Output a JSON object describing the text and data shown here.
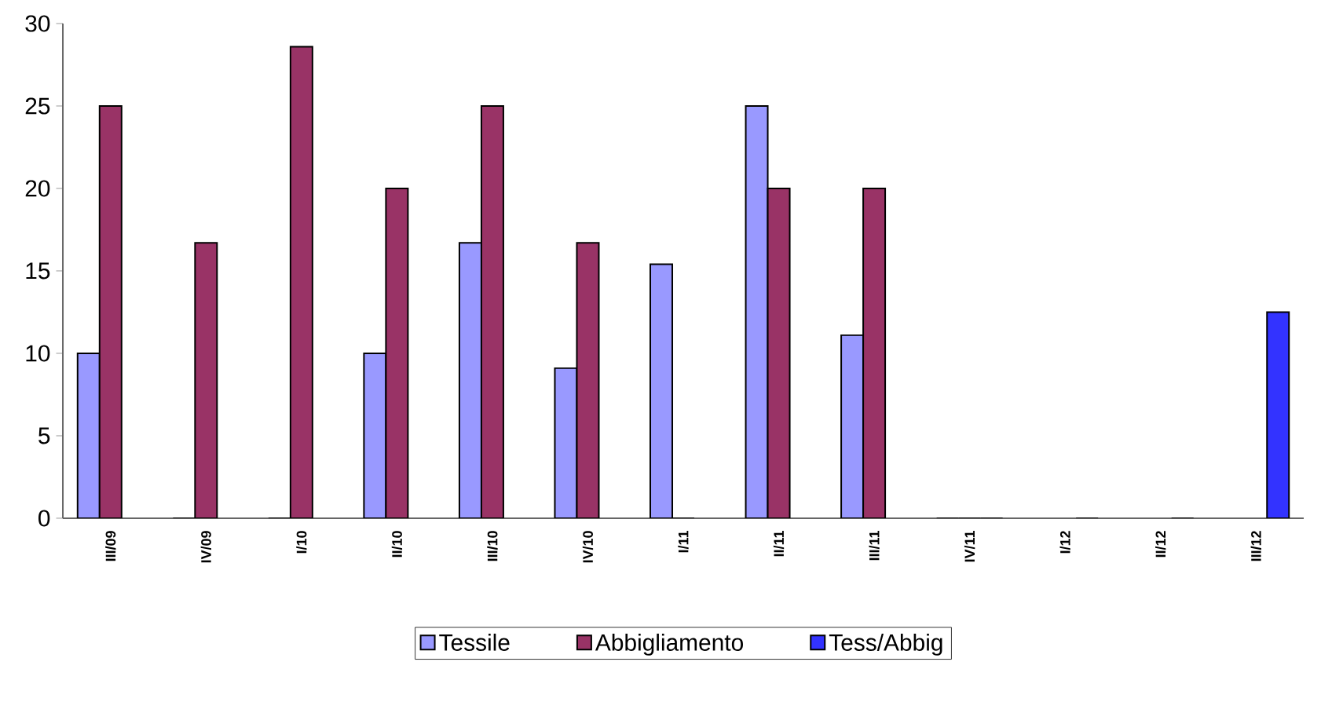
{
  "chart_data": {
    "type": "bar",
    "categories": [
      "III/09",
      "IV/09",
      "I/10",
      "II/10",
      "III/10",
      "IV/10",
      "I/11",
      "II/11",
      "III/11",
      "IV/11",
      "I/12",
      "II/12",
      "III/12"
    ],
    "series": [
      {
        "name": "Tessile",
        "color": "#9999ff",
        "values": [
          10,
          0,
          0,
          10,
          16.7,
          9.1,
          15.4,
          25,
          11.1,
          0,
          null,
          null,
          null
        ]
      },
      {
        "name": "Abbigliamento",
        "color": "#993366",
        "values": [
          25,
          16.7,
          28.6,
          20,
          25,
          16.7,
          0,
          20,
          20,
          0,
          null,
          null,
          null
        ]
      },
      {
        "name": "Tess/Abbig",
        "color": "#3333ff",
        "values": [
          null,
          null,
          null,
          null,
          null,
          null,
          null,
          null,
          null,
          0,
          0,
          0,
          12.5
        ]
      }
    ],
    "ylim": [
      0,
      30
    ],
    "yticks": [
      0,
      5,
      10,
      15,
      20,
      25,
      30
    ],
    "grid": false,
    "legend": "bottom"
  }
}
